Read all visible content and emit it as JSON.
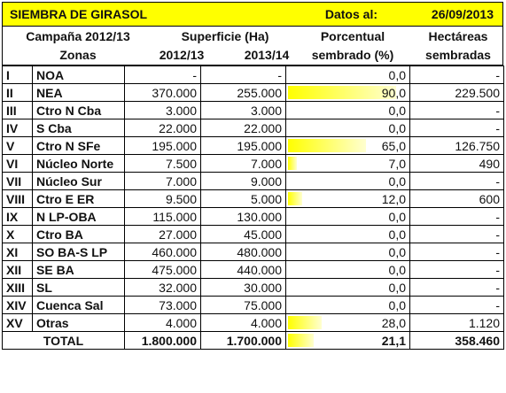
{
  "header": {
    "title": "SIEMBRA DE GIRASOL",
    "datos_label": "Datos al:",
    "date": "26/09/2013"
  },
  "columns": {
    "campana": "Campaña 2012/13",
    "zonas": "Zonas",
    "superficie": "Superficie (Ha)",
    "sup_2012": "2012/13",
    "sup_2013": "2013/14",
    "porcentual_1": "Porcentual",
    "porcentual_2": "sembrado (%)",
    "hectareas_1": "Hectáreas",
    "hectareas_2": "sembradas"
  },
  "rows": [
    {
      "num": "I",
      "zona": "NOA",
      "s2012": "-",
      "s2013": "-",
      "pct": "0,0",
      "pct_value": 0,
      "ha": "-"
    },
    {
      "num": "II",
      "zona": "NEA",
      "s2012": "370.000",
      "s2013": "255.000",
      "pct": "90,0",
      "pct_value": 90,
      "ha": "229.500"
    },
    {
      "num": "III",
      "zona": "Ctro N Cba",
      "s2012": "3.000",
      "s2013": "3.000",
      "pct": "0,0",
      "pct_value": 0,
      "ha": "-"
    },
    {
      "num": "IV",
      "zona": "S Cba",
      "s2012": "22.000",
      "s2013": "22.000",
      "pct": "0,0",
      "pct_value": 0,
      "ha": "-"
    },
    {
      "num": "V",
      "zona": "Ctro N SFe",
      "s2012": "195.000",
      "s2013": "195.000",
      "pct": "65,0",
      "pct_value": 65,
      "ha": "126.750"
    },
    {
      "num": "VI",
      "zona": "Núcleo Norte",
      "s2012": "7.500",
      "s2013": "7.000",
      "pct": "7,0",
      "pct_value": 7,
      "ha": "490"
    },
    {
      "num": "VII",
      "zona": "Núcleo Sur",
      "s2012": "7.000",
      "s2013": "9.000",
      "pct": "0,0",
      "pct_value": 0,
      "ha": "-"
    },
    {
      "num": "VIII",
      "zona": "Ctro E ER",
      "s2012": "9.500",
      "s2013": "5.000",
      "pct": "12,0",
      "pct_value": 12,
      "ha": "600"
    },
    {
      "num": "IX",
      "zona": "N LP-OBA",
      "s2012": "115.000",
      "s2013": "130.000",
      "pct": "0,0",
      "pct_value": 0,
      "ha": "-"
    },
    {
      "num": "X",
      "zona": "Ctro BA",
      "s2012": "27.000",
      "s2013": "45.000",
      "pct": "0,0",
      "pct_value": 0,
      "ha": "-"
    },
    {
      "num": "XI",
      "zona": "SO BA-S LP",
      "s2012": "460.000",
      "s2013": "480.000",
      "pct": "0,0",
      "pct_value": 0,
      "ha": "-"
    },
    {
      "num": "XII",
      "zona": "SE BA",
      "s2012": "475.000",
      "s2013": "440.000",
      "pct": "0,0",
      "pct_value": 0,
      "ha": "-"
    },
    {
      "num": "XIII",
      "zona": "SL",
      "s2012": "32.000",
      "s2013": "30.000",
      "pct": "0,0",
      "pct_value": 0,
      "ha": "-"
    },
    {
      "num": "XIV",
      "zona": "Cuenca Sal",
      "s2012": "73.000",
      "s2013": "75.000",
      "pct": "0,0",
      "pct_value": 0,
      "ha": "-"
    },
    {
      "num": "XV",
      "zona": "Otras",
      "s2012": "4.000",
      "s2013": "4.000",
      "pct": "28,0",
      "pct_value": 28,
      "ha": "1.120"
    }
  ],
  "total": {
    "label": "TOTAL",
    "s2012": "1.800.000",
    "s2013": "1.700.000",
    "pct": "21,1",
    "pct_value": 21.1,
    "ha": "358.460"
  },
  "colors": {
    "bar": "#ffff00",
    "header_bg": "#ffff00"
  }
}
